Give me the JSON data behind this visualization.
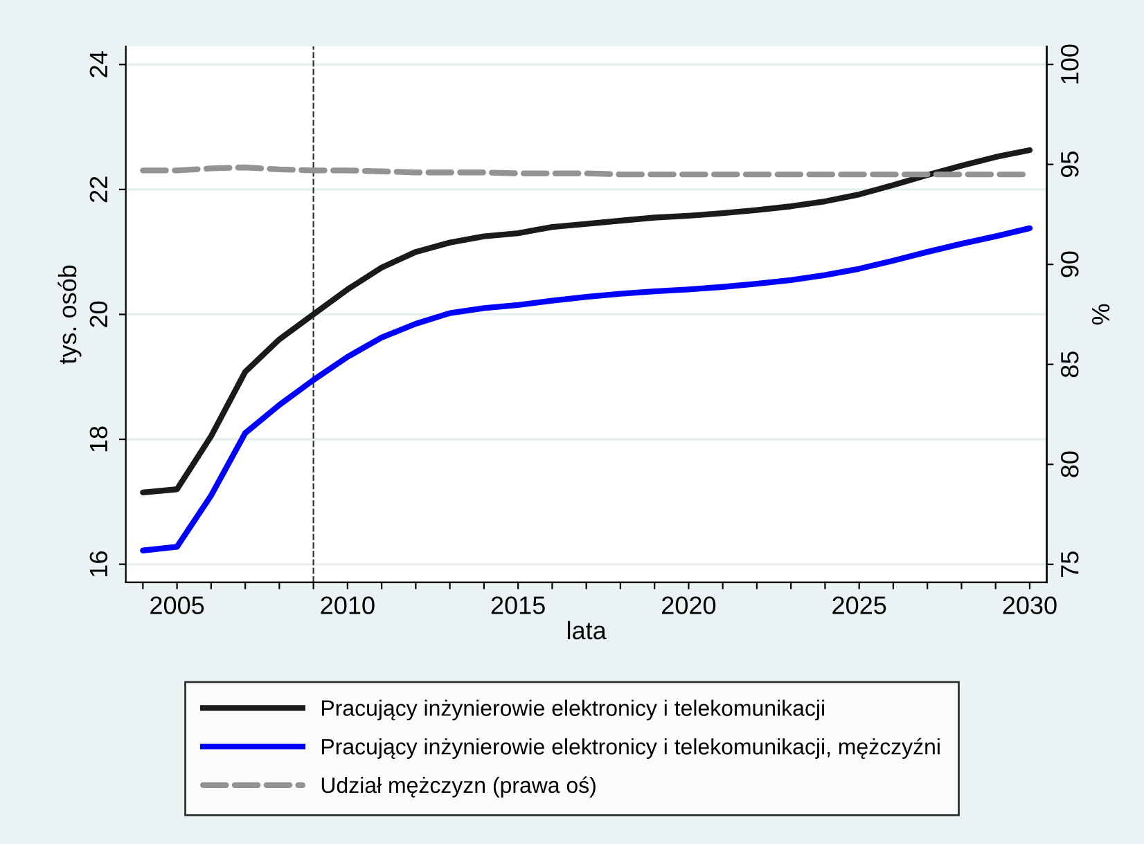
{
  "chart_data": {
    "type": "line",
    "xlabel": "lata",
    "ylabel": "tys. osób",
    "y2label": "%",
    "x": [
      2004,
      2005,
      2006,
      2007,
      2008,
      2009,
      2010,
      2011,
      2012,
      2013,
      2014,
      2015,
      2016,
      2017,
      2018,
      2019,
      2020,
      2021,
      2022,
      2023,
      2024,
      2025,
      2026,
      2027,
      2028,
      2029,
      2030
    ],
    "series": [
      {
        "name": "Pracujący inżynierowie elektronicy i telekomunikacji",
        "color": "#1a1a1a",
        "line_style": "solid",
        "values": [
          17.15,
          17.2,
          18.05,
          19.08,
          19.6,
          20.0,
          20.4,
          20.75,
          21.0,
          21.15,
          21.25,
          21.3,
          21.4,
          21.45,
          21.5,
          21.55,
          21.58,
          21.62,
          21.67,
          21.73,
          21.81,
          21.92,
          22.07,
          22.23,
          22.38,
          22.52,
          22.63
        ]
      },
      {
        "name": "Pracujący inżynierowie elektronicy i telekomunikacji, mężczyźni",
        "color": "#0000ff",
        "line_style": "solid",
        "values": [
          16.22,
          16.28,
          17.1,
          18.1,
          18.55,
          18.95,
          19.32,
          19.63,
          19.85,
          20.02,
          20.1,
          20.15,
          20.22,
          20.28,
          20.33,
          20.37,
          20.4,
          20.44,
          20.49,
          20.55,
          20.63,
          20.73,
          20.86,
          21.0,
          21.13,
          21.25,
          21.38
        ]
      },
      {
        "name": "Udział mężczyzn (prawa oś)",
        "color": "#939393",
        "line_style": "dashed",
        "axis": "y2",
        "values": [
          94.7,
          94.7,
          94.8,
          94.85,
          94.75,
          94.7,
          94.7,
          94.65,
          94.6,
          94.6,
          94.6,
          94.55,
          94.55,
          94.55,
          94.5,
          94.5,
          94.5,
          94.5,
          94.5,
          94.5,
          94.5,
          94.5,
          94.5,
          94.5,
          94.5,
          94.5,
          94.5
        ]
      }
    ],
    "xlim": [
      2003.5,
      2030.5
    ],
    "xticks": [
      {
        "value": 2004,
        "label": null
      },
      2005,
      {
        "value": 2006,
        "label": null
      },
      {
        "value": 2007,
        "label": null
      },
      {
        "value": 2008,
        "label": null
      },
      {
        "value": 2009,
        "label": null
      },
      2010,
      {
        "value": 2011,
        "label": null
      },
      {
        "value": 2012,
        "label": null
      },
      {
        "value": 2013,
        "label": null
      },
      {
        "value": 2014,
        "label": null
      },
      2015,
      {
        "value": 2016,
        "label": null
      },
      {
        "value": 2017,
        "label": null
      },
      {
        "value": 2018,
        "label": null
      },
      {
        "value": 2019,
        "label": null
      },
      2020,
      {
        "value": 2021,
        "label": null
      },
      {
        "value": 2022,
        "label": null
      },
      {
        "value": 2023,
        "label": null
      },
      {
        "value": 2024,
        "label": null
      },
      2025,
      {
        "value": 2026,
        "label": null
      },
      {
        "value": 2027,
        "label": null
      },
      {
        "value": 2028,
        "label": null
      },
      {
        "value": 2029,
        "label": null
      },
      2030
    ],
    "ylim": [
      15.71,
      24.29
    ],
    "yticks": [
      16,
      18,
      20,
      22,
      24
    ],
    "y2lim": [
      74.1,
      100.9
    ],
    "y2ticks": [
      75,
      80,
      85,
      90,
      95,
      100
    ],
    "ref_lines": [
      {
        "axis": "x",
        "value": 2009,
        "color": "#333333",
        "line_style": "dashed"
      }
    ],
    "grid": "y",
    "legend": "bottom",
    "marker": "none"
  }
}
